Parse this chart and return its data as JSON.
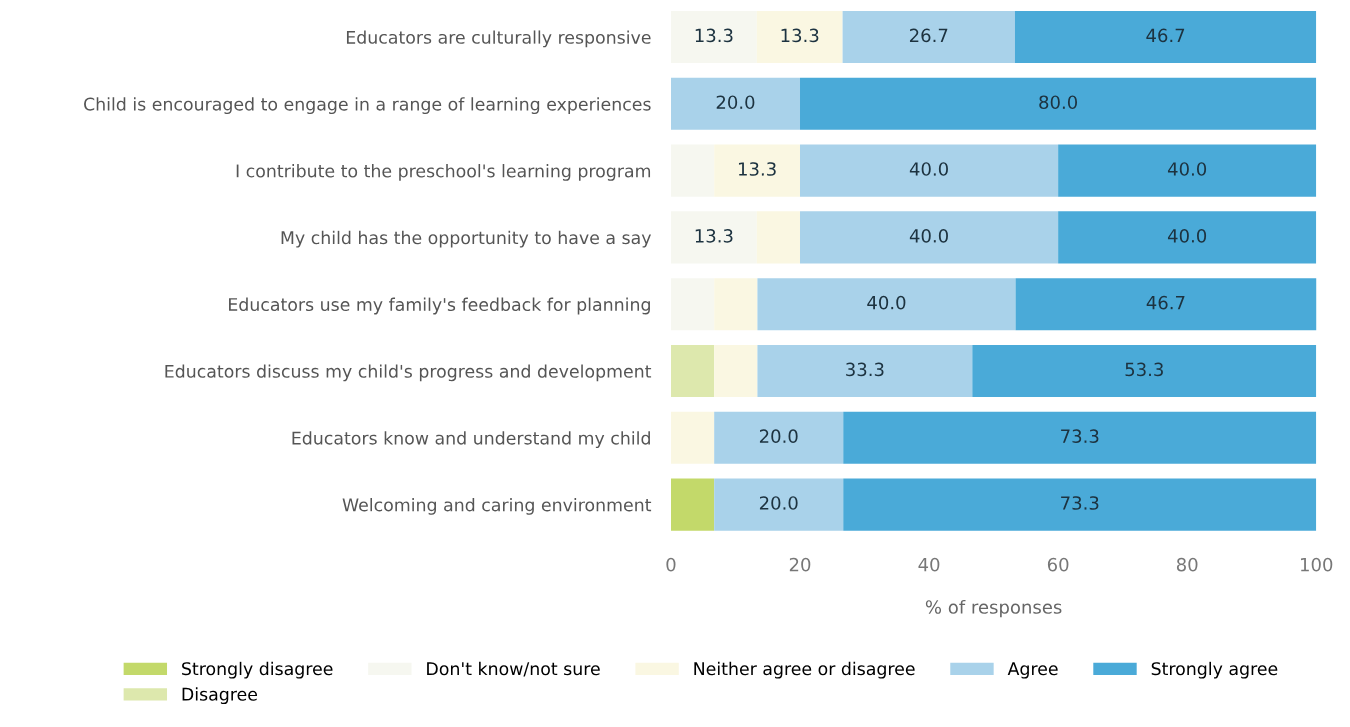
{
  "chart_data": {
    "type": "bar",
    "orientation": "horizontal",
    "stacked": true,
    "categories": [
      "Educators are culturally responsive",
      "Child is encouraged to engage in a range of learning experiences",
      "I contribute to the preschool's learning program",
      "My child has the opportunity to have a say",
      "Educators use my family's feedback for planning",
      "Educators discuss my child's progress and development",
      "Educators know and understand my child",
      "Welcoming and caring environment"
    ],
    "series": [
      {
        "name": "Strongly disagree",
        "color": "#c3d96a",
        "values": [
          0,
          0,
          0,
          0,
          0,
          0,
          0,
          6.7
        ],
        "value_labels": [
          null,
          null,
          null,
          null,
          null,
          null,
          null,
          null
        ]
      },
      {
        "name": "Disagree",
        "color": "#dde8ad",
        "values": [
          0,
          0,
          0,
          0,
          0,
          6.7,
          0,
          0
        ],
        "value_labels": [
          null,
          null,
          null,
          null,
          null,
          null,
          null,
          null
        ]
      },
      {
        "name": "Don't know/not sure",
        "color": "#f6f7f0",
        "values": [
          13.3,
          0,
          6.7,
          13.3,
          6.7,
          0,
          0,
          0
        ],
        "value_labels": [
          "13.3",
          null,
          null,
          "13.3",
          null,
          null,
          null,
          null
        ]
      },
      {
        "name": "Neither agree or disagree",
        "color": "#faf7e2",
        "values": [
          13.3,
          0,
          13.3,
          6.7,
          6.7,
          6.7,
          6.7,
          0
        ],
        "value_labels": [
          "13.3",
          null,
          "13.3",
          null,
          null,
          null,
          null,
          null
        ]
      },
      {
        "name": "Agree",
        "color": "#a9d2ea",
        "values": [
          26.7,
          20.0,
          40.0,
          40.0,
          40.0,
          33.3,
          20.0,
          20.0
        ],
        "value_labels": [
          "26.7",
          "20.0",
          "40.0",
          "40.0",
          "40.0",
          "33.3",
          "20.0",
          "20.0"
        ]
      },
      {
        "name": "Strongly agree",
        "color": "#4aaad8",
        "values": [
          46.7,
          80.0,
          40.0,
          40.0,
          46.7,
          53.3,
          73.3,
          73.3
        ],
        "value_labels": [
          "46.7",
          "80.0",
          "40.0",
          "40.0",
          "46.7",
          "53.3",
          "73.3",
          "73.3"
        ]
      }
    ],
    "xlim": [
      0,
      100
    ],
    "xticks": [
      0,
      20,
      40,
      60,
      80,
      100
    ],
    "xlabel": "% of responses",
    "legend": "bottom",
    "grid": false
  }
}
